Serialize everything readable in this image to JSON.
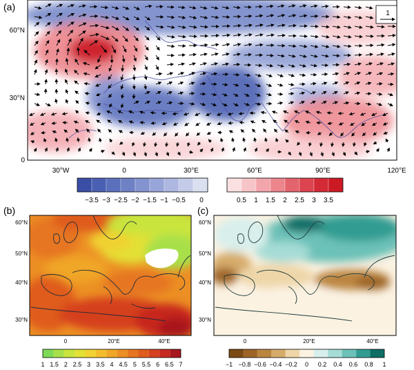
{
  "panels": [
    {
      "label": "(a)",
      "lat_ticks": [
        "0",
        "30°N",
        "60°N"
      ],
      "lon_ticks": [
        "30°W",
        "0",
        "30°E",
        "60°E",
        "90°E",
        "120°E"
      ],
      "vector_reference": "1",
      "colorbar": {
        "negative_ticks": [
          "−3.5",
          "−3",
          "−2.5",
          "−2",
          "−1.5",
          "−1",
          "−0.5",
          "0"
        ],
        "positive_ticks": [
          "0.5",
          "1",
          "1.5",
          "2",
          "2.5",
          "3",
          "3.5"
        ],
        "colors": [
          "#3a4ea6",
          "#4a60b2",
          "#5b70bc",
          "#6f81c5",
          "#8393cf",
          "#98a5d8",
          "#adb7e0",
          "#c3cbe9",
          "#dbe0f1",
          "#fbe0e2",
          "#f7c4c8",
          "#f2a5ab",
          "#ec858c",
          "#e4646d",
          "#dc444f",
          "#d42a35",
          "#cc1a25"
        ]
      }
    },
    {
      "label": "(b)",
      "lat_ticks": [
        "30°N",
        "40°N",
        "50°N",
        "60°N"
      ],
      "lon_ticks": [
        "0",
        "20°E",
        "40°E"
      ],
      "colorbar": {
        "ticks": [
          "1",
          "1.5",
          "2",
          "2.5",
          "3",
          "3.5",
          "4",
          "4.5",
          "5",
          "5.5",
          "6",
          "6.5",
          "7"
        ],
        "colors": [
          "#7ed957",
          "#a8e04a",
          "#c9e43c",
          "#e3e036",
          "#f0d232",
          "#f2bd2c",
          "#f0a628",
          "#ec8f24",
          "#e67620",
          "#df5c1e",
          "#d5411e",
          "#c7281f",
          "#a8161e"
        ]
      }
    },
    {
      "label": "(c)",
      "lat_ticks": [
        "30°N",
        "40°N",
        "50°N",
        "60°N"
      ],
      "lon_ticks": [
        "0",
        "20°E",
        "40°E"
      ],
      "colorbar": {
        "ticks": [
          "−1",
          "−0.8",
          "−0.6",
          "−0.4",
          "−0.2",
          "0",
          "0.2",
          "0.4",
          "0.6",
          "0.8",
          "1"
        ],
        "colors": [
          "#7a4a14",
          "#9c6426",
          "#bb8540",
          "#d6ab6a",
          "#eed6a8",
          "#fbf2e2",
          "#d8efec",
          "#a6dcd6",
          "#6cc1b8",
          "#339c92",
          "#0e6e66"
        ]
      }
    }
  ]
}
